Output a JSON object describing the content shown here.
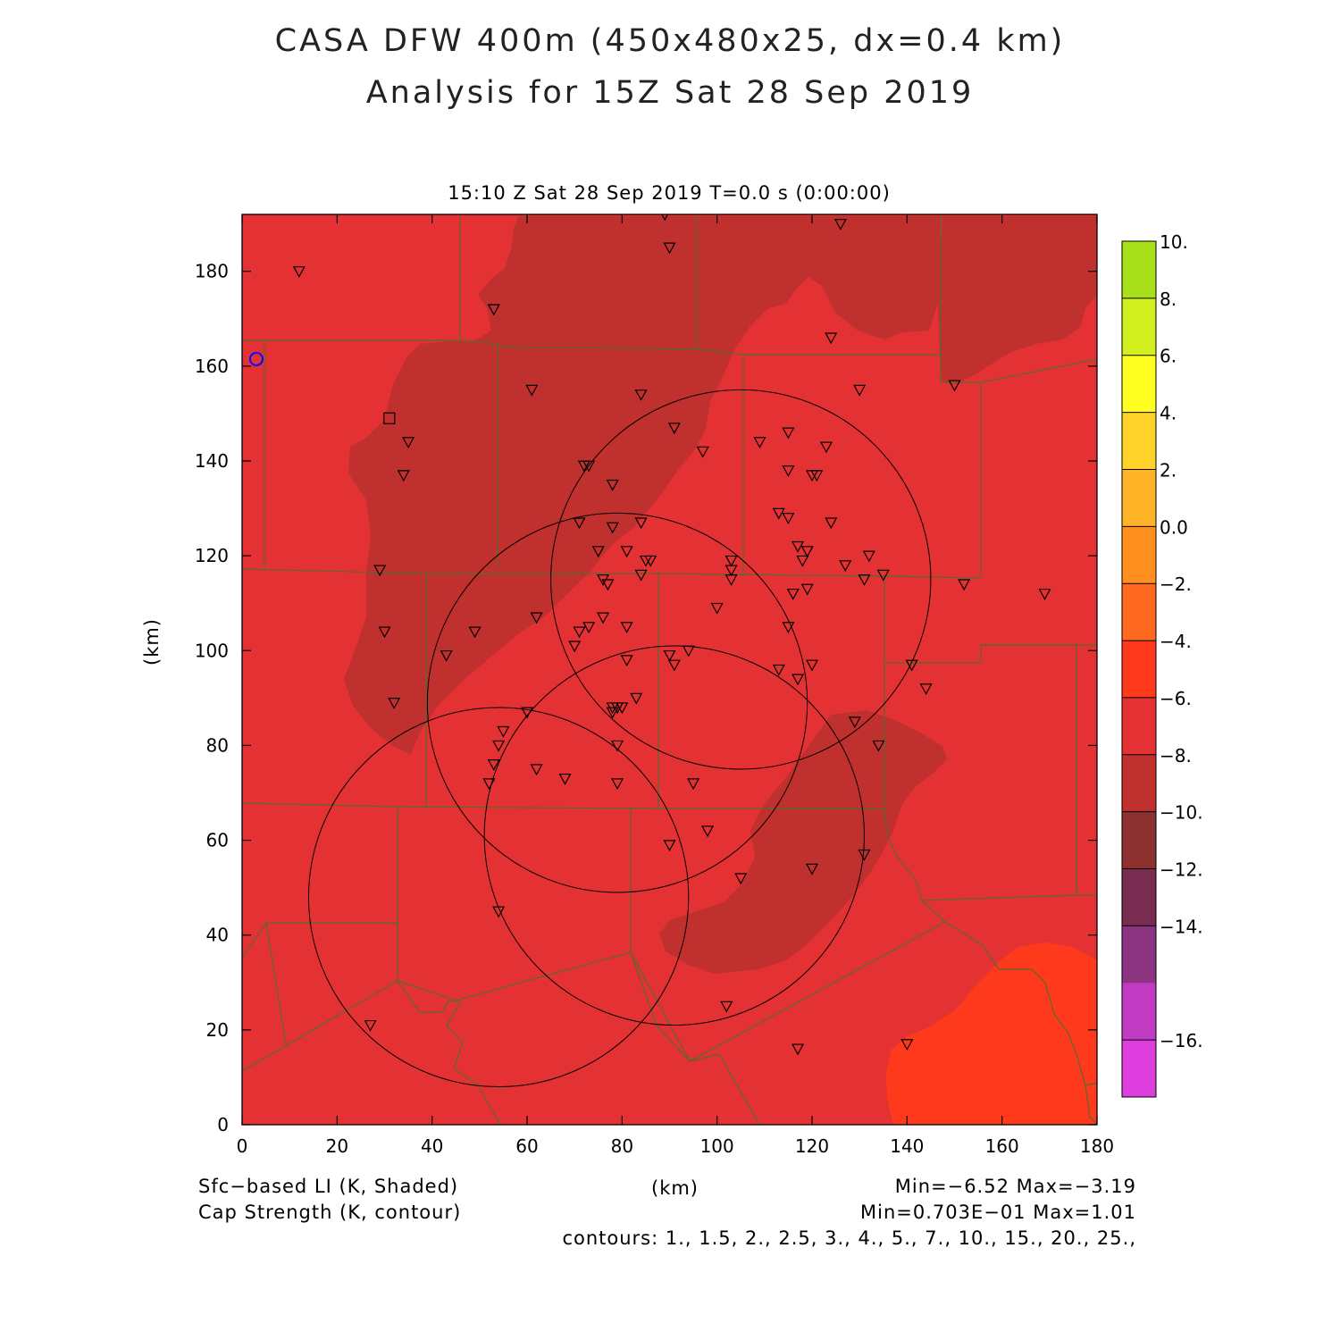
{
  "title": {
    "line1": "CASA DFW 400m (450x480x25, dx=0.4 km)",
    "line2": "Analysis for 15Z Sat 28 Sep 2019"
  },
  "subtitle": "15:10 Z Sat 28 Sep 2019   T=0.0 s (0:00:00)",
  "axes": {
    "xlabel": "(km)",
    "ylabel": "(km)",
    "xlim": [
      0,
      180
    ],
    "ylim": [
      0,
      192
    ],
    "xticks": [
      "0",
      "20",
      "40",
      "60",
      "80",
      "100",
      "120",
      "140",
      "160",
      "180"
    ],
    "yticks": [
      "0",
      "20",
      "40",
      "60",
      "80",
      "100",
      "120",
      "140",
      "160",
      "180"
    ]
  },
  "colorbar": {
    "labels": [
      "10.",
      "8.",
      "6.",
      "4.",
      "2.",
      "0.0",
      "−2.",
      "−4.",
      "−6.",
      "−8.",
      "−10.",
      "−12.",
      "−14.",
      "−16."
    ],
    "colors": [
      "#a8e01c",
      "#d2f01e",
      "#ffff20",
      "#ffd22a",
      "#ffb428",
      "#ff9020",
      "#ff6a20",
      "#ff3a1c",
      "#e43234",
      "#c0302e",
      "#8c3030",
      "#782c50",
      "#8c3482",
      "#c03ac2",
      "#de3ede"
    ]
  },
  "footer": {
    "field1": "Sfc−based LI (K, Shaded)",
    "field2": "Cap Strength (K, contour)",
    "xunit": "(km)",
    "range1": "Min=−6.52 Max=−3.19",
    "range2": "Min=0.703E−01 Max=1.01",
    "contours": "contours: 1., 1.5, 2., 2.5, 3., 4., 5., 7., 10., 15., 20., 25.,"
  },
  "map_colors": {
    "base": "#e43234",
    "darker": "#c0302e",
    "warm": "#ff3a1c",
    "county_lines": "#556b2f",
    "contours": "#000000",
    "radar_marker": "#0000ff"
  },
  "stations": [
    [
      12,
      180
    ],
    [
      53,
      172
    ],
    [
      89,
      192
    ],
    [
      90,
      185
    ],
    [
      126,
      190
    ],
    [
      124,
      166
    ],
    [
      150,
      156
    ],
    [
      61,
      155
    ],
    [
      84,
      154
    ],
    [
      91,
      147
    ],
    [
      97,
      142
    ],
    [
      109,
      144
    ],
    [
      115,
      146
    ],
    [
      123,
      143
    ],
    [
      130,
      155
    ],
    [
      35,
      144
    ],
    [
      34,
      137
    ],
    [
      72,
      139
    ],
    [
      73,
      139
    ],
    [
      78,
      135
    ],
    [
      115,
      138
    ],
    [
      120,
      137
    ],
    [
      121,
      137
    ],
    [
      113,
      129
    ],
    [
      115,
      128
    ],
    [
      124,
      127
    ],
    [
      71,
      127
    ],
    [
      78,
      126
    ],
    [
      84,
      127
    ],
    [
      75,
      121
    ],
    [
      81,
      121
    ],
    [
      85,
      119
    ],
    [
      86,
      119
    ],
    [
      103,
      119
    ],
    [
      103,
      117
    ],
    [
      117,
      122
    ],
    [
      119,
      121
    ],
    [
      118,
      119
    ],
    [
      132,
      120
    ],
    [
      127,
      118
    ],
    [
      29,
      117
    ],
    [
      76,
      115
    ],
    [
      77,
      114
    ],
    [
      103,
      115
    ],
    [
      84,
      116
    ],
    [
      131,
      115
    ],
    [
      135,
      116
    ],
    [
      152,
      114
    ],
    [
      169,
      112
    ],
    [
      116,
      112
    ],
    [
      119,
      113
    ],
    [
      62,
      107
    ],
    [
      71,
      104
    ],
    [
      73,
      105
    ],
    [
      76,
      107
    ],
    [
      70,
      101
    ],
    [
      81,
      105
    ],
    [
      100,
      109
    ],
    [
      115,
      105
    ],
    [
      30,
      104
    ],
    [
      49,
      104
    ],
    [
      43,
      99
    ],
    [
      81,
      98
    ],
    [
      90,
      99
    ],
    [
      91,
      97
    ],
    [
      94,
      100
    ],
    [
      113,
      96
    ],
    [
      117,
      94
    ],
    [
      120,
      97
    ],
    [
      141,
      97
    ],
    [
      144,
      92
    ],
    [
      32,
      89
    ],
    [
      78,
      88
    ],
    [
      79,
      88
    ],
    [
      78,
      87
    ],
    [
      80,
      88
    ],
    [
      83,
      90
    ],
    [
      60,
      87
    ],
    [
      55,
      83
    ],
    [
      54,
      80
    ],
    [
      79,
      80
    ],
    [
      129,
      85
    ],
    [
      134,
      80
    ],
    [
      53,
      76
    ],
    [
      62,
      75
    ],
    [
      52,
      72
    ],
    [
      68,
      73
    ],
    [
      79,
      72
    ],
    [
      95,
      72
    ],
    [
      98,
      62
    ],
    [
      90,
      59
    ],
    [
      131,
      57
    ],
    [
      105,
      52
    ],
    [
      120,
      54
    ],
    [
      54,
      45
    ],
    [
      102,
      25
    ],
    [
      27,
      21
    ],
    [
      117,
      16
    ],
    [
      140,
      17
    ]
  ],
  "radar": [
    3,
    161.5
  ],
  "square_marker": [
    31,
    149
  ],
  "circles": [
    {
      "cx": 105,
      "cy": 115,
      "r": 40
    },
    {
      "cx": 79,
      "cy": 89,
      "r": 40
    },
    {
      "cx": 91,
      "cy": 61,
      "r": 40
    },
    {
      "cx": 54,
      "cy": 48,
      "r": 40
    }
  ]
}
